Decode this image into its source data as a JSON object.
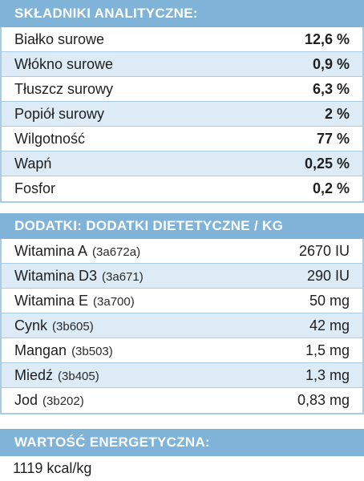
{
  "analytic": {
    "title": "SKŁADNIKI ANALITYCZNE:",
    "rows": [
      {
        "name": "Białko surowe",
        "value": "12,6 %"
      },
      {
        "name": "Włókno surowe",
        "value": "0,9 %"
      },
      {
        "name": "Tłuszcz surowy",
        "value": "6,3 %"
      },
      {
        "name": "Popiół surowy",
        "value": "2 %"
      },
      {
        "name": "Wilgotność",
        "value": "77 %"
      },
      {
        "name": "Wapń",
        "value": "0,25 %"
      },
      {
        "name": "Fosfor",
        "value": "0,2 %"
      }
    ]
  },
  "additives": {
    "title": "DODATKI: DODATKI DIETETYCZNE / KG",
    "rows": [
      {
        "name": "Witamina A",
        "code": "(3a672a)",
        "value": "2670 IU"
      },
      {
        "name": "Witamina D3",
        "code": "(3a671)",
        "value": "290 IU"
      },
      {
        "name": "Witamina E",
        "code": "(3a700)",
        "value": "50 mg"
      },
      {
        "name": "Cynk",
        "code": "(3b605)",
        "value": "42 mg"
      },
      {
        "name": "Mangan",
        "code": "(3b503)",
        "value": "1,5 mg"
      },
      {
        "name": "Miedź",
        "code": "(3b405)",
        "value": "1,3 mg"
      },
      {
        "name": "Jod",
        "code": "(3b202)",
        "value": "0,83 mg"
      }
    ]
  },
  "energy": {
    "title": "WARTOŚĆ ENERGETYCZNA:",
    "value": "1119 kcal/kg"
  },
  "colors": {
    "header": "#7fb3d8",
    "alt_row": "#dcebf6",
    "border": "#a9cde6"
  }
}
